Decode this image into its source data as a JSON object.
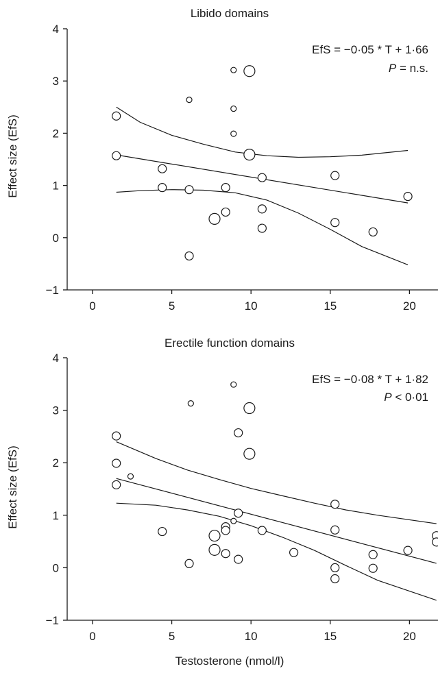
{
  "chart_data": [
    {
      "type": "scatter",
      "title": "Libido domains",
      "xlabel": "",
      "ylabel": "Effect size (EfS)",
      "xlim": [
        -1.6,
        21.8
      ],
      "ylim": [
        -1,
        4
      ],
      "xticks": [
        0,
        5,
        10,
        15,
        20
      ],
      "yticks": [
        -1,
        0,
        1,
        2,
        3,
        4
      ],
      "xtick_labels": [
        "0",
        "5",
        "10",
        "15",
        "20"
      ],
      "ytick_labels": [
        "−1",
        "0",
        "1",
        "2",
        "3",
        "4"
      ],
      "annotation": {
        "equation": "EfS = −0·05 * T + 1·66",
        "p_label": "P",
        "p_value": " = n.s."
      },
      "grid": false,
      "points": [
        {
          "x": 1.5,
          "y": 2.33,
          "size": "m"
        },
        {
          "x": 1.5,
          "y": 1.57,
          "size": "m"
        },
        {
          "x": 4.4,
          "y": 1.32,
          "size": "m"
        },
        {
          "x": 4.4,
          "y": 0.96,
          "size": "m"
        },
        {
          "x": 6.1,
          "y": 2.64,
          "size": "s"
        },
        {
          "x": 6.1,
          "y": 0.92,
          "size": "m"
        },
        {
          "x": 6.1,
          "y": -0.35,
          "size": "m"
        },
        {
          "x": 7.7,
          "y": 0.36,
          "size": "l"
        },
        {
          "x": 8.4,
          "y": 0.96,
          "size": "m"
        },
        {
          "x": 8.4,
          "y": 0.49,
          "size": "m"
        },
        {
          "x": 8.9,
          "y": 3.21,
          "size": "s"
        },
        {
          "x": 8.9,
          "y": 2.47,
          "size": "s"
        },
        {
          "x": 8.9,
          "y": 1.99,
          "size": "s"
        },
        {
          "x": 9.9,
          "y": 3.19,
          "size": "l"
        },
        {
          "x": 9.9,
          "y": 1.59,
          "size": "l"
        },
        {
          "x": 10.7,
          "y": 1.15,
          "size": "m"
        },
        {
          "x": 10.7,
          "y": 0.55,
          "size": "m"
        },
        {
          "x": 10.7,
          "y": 0.18,
          "size": "m"
        },
        {
          "x": 15.3,
          "y": 1.19,
          "size": "m"
        },
        {
          "x": 15.3,
          "y": 0.29,
          "size": "m"
        },
        {
          "x": 17.7,
          "y": 0.11,
          "size": "m"
        },
        {
          "x": 19.9,
          "y": 0.79,
          "size": "m"
        }
      ],
      "fit": {
        "slope": -0.05,
        "intercept": 1.66,
        "x_range": [
          1.5,
          19.9
        ]
      },
      "ci_upper": [
        [
          1.5,
          2.5
        ],
        [
          3,
          2.21
        ],
        [
          5,
          1.96
        ],
        [
          7,
          1.79
        ],
        [
          9,
          1.64
        ],
        [
          11,
          1.57
        ],
        [
          13,
          1.54
        ],
        [
          15,
          1.55
        ],
        [
          17,
          1.58
        ],
        [
          19.9,
          1.67
        ]
      ],
      "ci_lower": [
        [
          1.5,
          0.87
        ],
        [
          3,
          0.9
        ],
        [
          5,
          0.92
        ],
        [
          7,
          0.91
        ],
        [
          9,
          0.86
        ],
        [
          11,
          0.72
        ],
        [
          13,
          0.47
        ],
        [
          15,
          0.16
        ],
        [
          17,
          -0.17
        ],
        [
          19.9,
          -0.52
        ]
      ]
    },
    {
      "type": "scatter",
      "title": "Erectile function domains",
      "xlabel": "Testosterone (nmol/l)",
      "ylabel": "Effect size (EfS)",
      "xlim": [
        -1.6,
        21.8
      ],
      "ylim": [
        -1,
        4
      ],
      "xticks": [
        0,
        5,
        10,
        15,
        20
      ],
      "yticks": [
        -1,
        0,
        1,
        2,
        3,
        4
      ],
      "xtick_labels": [
        "0",
        "5",
        "10",
        "15",
        "20"
      ],
      "ytick_labels": [
        "−1",
        "0",
        "1",
        "2",
        "3",
        "4"
      ],
      "annotation": {
        "equation": "EfS = −0·08 * T + 1·82",
        "p_label": "P",
        "p_value": " < 0·01"
      },
      "grid": false,
      "points": [
        {
          "x": 1.5,
          "y": 2.51,
          "size": "m"
        },
        {
          "x": 1.5,
          "y": 1.99,
          "size": "m"
        },
        {
          "x": 1.5,
          "y": 1.58,
          "size": "m"
        },
        {
          "x": 2.4,
          "y": 1.74,
          "size": "s"
        },
        {
          "x": 4.4,
          "y": 0.69,
          "size": "m"
        },
        {
          "x": 6.2,
          "y": 3.13,
          "size": "s"
        },
        {
          "x": 6.1,
          "y": 0.08,
          "size": "m"
        },
        {
          "x": 7.7,
          "y": 0.61,
          "size": "l"
        },
        {
          "x": 7.7,
          "y": 0.34,
          "size": "l"
        },
        {
          "x": 8.4,
          "y": 0.78,
          "size": "m"
        },
        {
          "x": 8.4,
          "y": 0.71,
          "size": "m"
        },
        {
          "x": 8.4,
          "y": 0.27,
          "size": "m"
        },
        {
          "x": 8.9,
          "y": 3.49,
          "size": "s"
        },
        {
          "x": 8.9,
          "y": 0.89,
          "size": "s"
        },
        {
          "x": 9.2,
          "y": 2.57,
          "size": "m"
        },
        {
          "x": 9.2,
          "y": 1.04,
          "size": "m"
        },
        {
          "x": 9.2,
          "y": 0.16,
          "size": "m"
        },
        {
          "x": 9.9,
          "y": 3.04,
          "size": "l"
        },
        {
          "x": 9.9,
          "y": 2.17,
          "size": "l"
        },
        {
          "x": 10.7,
          "y": 0.71,
          "size": "m"
        },
        {
          "x": 12.7,
          "y": 0.29,
          "size": "m"
        },
        {
          "x": 15.3,
          "y": 1.21,
          "size": "m"
        },
        {
          "x": 15.3,
          "y": 0.72,
          "size": "m"
        },
        {
          "x": 15.3,
          "y": 0.0,
          "size": "m"
        },
        {
          "x": 15.3,
          "y": -0.21,
          "size": "m"
        },
        {
          "x": 17.7,
          "y": 0.25,
          "size": "m"
        },
        {
          "x": 17.7,
          "y": -0.01,
          "size": "m"
        },
        {
          "x": 19.9,
          "y": 0.33,
          "size": "m"
        },
        {
          "x": 21.7,
          "y": 0.61,
          "size": "m"
        },
        {
          "x": 21.7,
          "y": 0.49,
          "size": "m"
        }
      ],
      "fit": {
        "slope": -0.08,
        "intercept": 1.82,
        "x_range": [
          1.5,
          21.7
        ]
      },
      "ci_upper": [
        [
          1.5,
          2.4
        ],
        [
          4,
          2.08
        ],
        [
          6,
          1.86
        ],
        [
          8,
          1.68
        ],
        [
          10,
          1.51
        ],
        [
          12,
          1.37
        ],
        [
          14,
          1.23
        ],
        [
          16,
          1.1
        ],
        [
          18,
          1.0
        ],
        [
          21.7,
          0.84
        ]
      ],
      "ci_lower": [
        [
          1.5,
          1.23
        ],
        [
          4,
          1.19
        ],
        [
          6,
          1.1
        ],
        [
          8,
          0.98
        ],
        [
          10,
          0.8
        ],
        [
          12,
          0.58
        ],
        [
          14,
          0.33
        ],
        [
          16,
          0.04
        ],
        [
          18,
          -0.24
        ],
        [
          21.7,
          -0.62
        ]
      ]
    }
  ]
}
